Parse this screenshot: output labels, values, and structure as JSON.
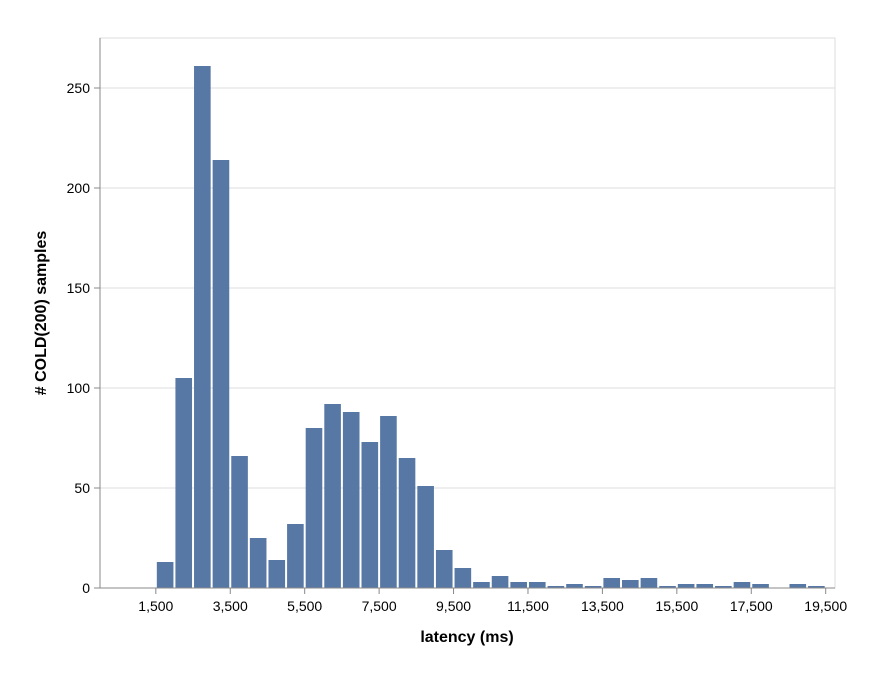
{
  "chart_data": {
    "type": "bar",
    "xlabel": "latency (ms)",
    "ylabel": "# COLD(200) samples",
    "x_ticks": [
      "1,500",
      "3,500",
      "5,500",
      "7,500",
      "9,500",
      "11,500",
      "13,500",
      "15,500",
      "17,500",
      "19,500"
    ],
    "y_ticks": [
      "0",
      "50",
      "100",
      "150",
      "200",
      "250"
    ],
    "bin_width": 500,
    "xlim": [
      0,
      19750
    ],
    "ylim": [
      0,
      275
    ],
    "grid": true,
    "bar_color": "#5778a4",
    "bins": [
      {
        "start": 1500,
        "count": 13
      },
      {
        "start": 2000,
        "count": 105
      },
      {
        "start": 2500,
        "count": 261
      },
      {
        "start": 3000,
        "count": 214
      },
      {
        "start": 3500,
        "count": 66
      },
      {
        "start": 4000,
        "count": 25
      },
      {
        "start": 4500,
        "count": 14
      },
      {
        "start": 5000,
        "count": 32
      },
      {
        "start": 5500,
        "count": 80
      },
      {
        "start": 6000,
        "count": 92
      },
      {
        "start": 6500,
        "count": 88
      },
      {
        "start": 7000,
        "count": 73
      },
      {
        "start": 7500,
        "count": 86
      },
      {
        "start": 8000,
        "count": 65
      },
      {
        "start": 8500,
        "count": 51
      },
      {
        "start": 9000,
        "count": 19
      },
      {
        "start": 9500,
        "count": 10
      },
      {
        "start": 10000,
        "count": 3
      },
      {
        "start": 10500,
        "count": 6
      },
      {
        "start": 11000,
        "count": 3
      },
      {
        "start": 11500,
        "count": 3
      },
      {
        "start": 12000,
        "count": 1
      },
      {
        "start": 12500,
        "count": 2
      },
      {
        "start": 13000,
        "count": 1
      },
      {
        "start": 13500,
        "count": 5
      },
      {
        "start": 14000,
        "count": 4
      },
      {
        "start": 14500,
        "count": 5
      },
      {
        "start": 15000,
        "count": 1
      },
      {
        "start": 15500,
        "count": 2
      },
      {
        "start": 16000,
        "count": 2
      },
      {
        "start": 16500,
        "count": 1
      },
      {
        "start": 17000,
        "count": 3
      },
      {
        "start": 17500,
        "count": 2
      },
      {
        "start": 18000,
        "count": 0
      },
      {
        "start": 18500,
        "count": 2
      },
      {
        "start": 19000,
        "count": 1
      }
    ]
  }
}
